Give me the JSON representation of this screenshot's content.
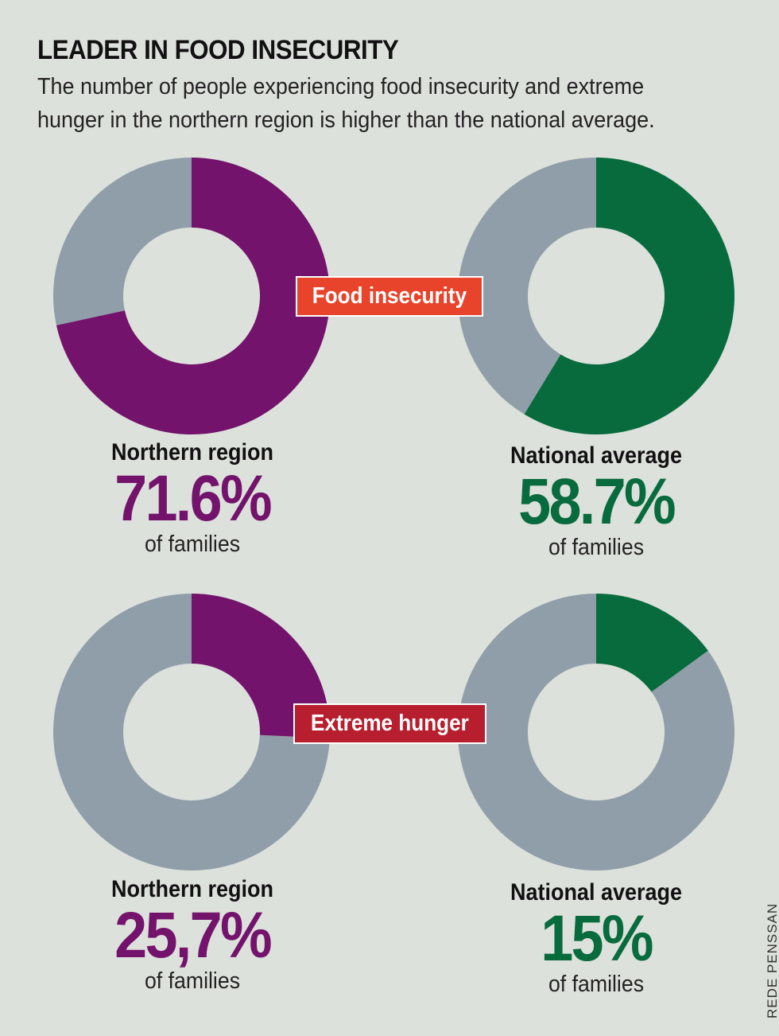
{
  "header": {
    "title": "LEADER IN FOOD INSECURITY",
    "subtitle": "The number of people experiencing food insecurity and extreme hunger in the northern region is higher than the national average."
  },
  "credit": "REDE PENSSAN",
  "colors": {
    "background": "#dde1db",
    "northern": "#73136c",
    "national": "#086b3d",
    "remainder": "#8f9ea8",
    "food_badge": "#e8442c",
    "hunger_badge": "#b81f2e"
  },
  "chart_data": [
    {
      "type": "pie",
      "group": "Food insecurity",
      "name": "Northern region",
      "value": 71.6,
      "value_label": "71.6%",
      "unit": "of families",
      "color": "#73136c"
    },
    {
      "type": "pie",
      "group": "Food insecurity",
      "name": "National average",
      "value": 58.7,
      "value_label": "58.7%",
      "unit": "of families",
      "color": "#086b3d"
    },
    {
      "type": "pie",
      "group": "Extreme hunger",
      "name": "Northern region",
      "value": 25.7,
      "value_label": "25,7%",
      "unit": "of families",
      "color": "#73136c"
    },
    {
      "type": "pie",
      "group": "Extreme hunger",
      "name": "National average",
      "value": 15,
      "value_label": "15%",
      "unit": "of families",
      "color": "#086b3d"
    }
  ]
}
